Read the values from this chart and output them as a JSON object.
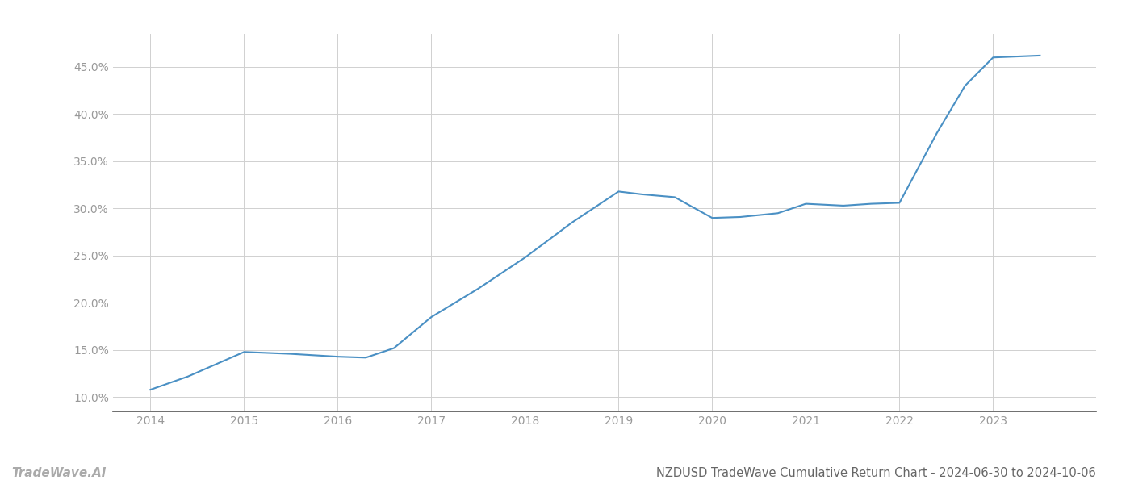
{
  "x_values": [
    2014.0,
    2014.4,
    2015.0,
    2015.5,
    2016.0,
    2016.3,
    2016.6,
    2017.0,
    2017.5,
    2018.0,
    2018.5,
    2019.0,
    2019.25,
    2019.6,
    2020.0,
    2020.3,
    2020.7,
    2021.0,
    2021.4,
    2021.7,
    2022.0,
    2022.4,
    2022.7,
    2023.0,
    2023.5
  ],
  "y_values": [
    10.8,
    12.2,
    14.8,
    14.6,
    14.3,
    14.2,
    15.2,
    18.5,
    21.5,
    24.8,
    28.5,
    31.8,
    31.5,
    31.2,
    29.0,
    29.1,
    29.5,
    30.5,
    30.3,
    30.5,
    30.6,
    38.0,
    43.0,
    46.0,
    46.2
  ],
  "line_color": "#4a90c4",
  "line_width": 1.5,
  "title": "NZDUSD TradeWave Cumulative Return Chart - 2024-06-30 to 2024-10-06",
  "title_fontsize": 10.5,
  "xlim": [
    2013.6,
    2024.1
  ],
  "ylim": [
    8.5,
    48.5
  ],
  "xtick_labels": [
    "2014",
    "2015",
    "2016",
    "2017",
    "2018",
    "2019",
    "2020",
    "2021",
    "2022",
    "2023"
  ],
  "xtick_values": [
    2014,
    2015,
    2016,
    2017,
    2018,
    2019,
    2020,
    2021,
    2022,
    2023
  ],
  "ytick_values": [
    10.0,
    15.0,
    20.0,
    25.0,
    30.0,
    35.0,
    40.0,
    45.0
  ],
  "ytick_labels": [
    "10.0%",
    "15.0%",
    "20.0%",
    "25.0%",
    "30.0%",
    "35.0%",
    "40.0%",
    "45.0%"
  ],
  "grid_color": "#d0d0d0",
  "grid_linewidth": 0.7,
  "background_color": "#ffffff",
  "watermark_text": "TradeWave.AI",
  "watermark_fontsize": 11,
  "watermark_color": "#aaaaaa",
  "tick_fontsize": 10,
  "tick_color": "#999999"
}
